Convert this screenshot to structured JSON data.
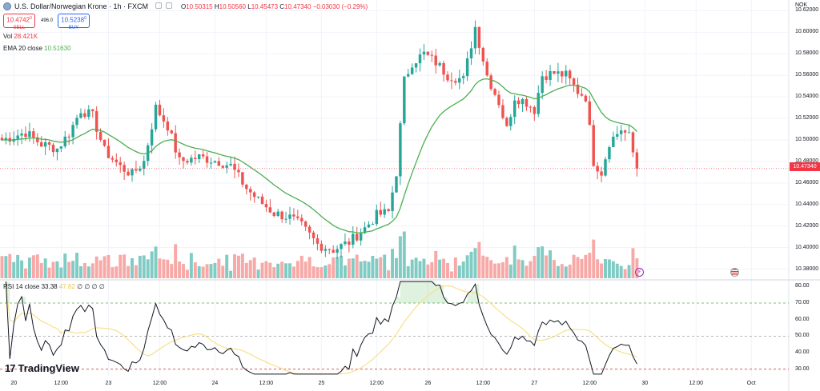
{
  "header": {
    "symbol_title": "U.S. Dollar/Norwegian Krone · 1h · FXCM",
    "ohlc": {
      "open_label": "O",
      "open": "10.50315",
      "high_label": "H",
      "high": "10.50560",
      "low_label": "L",
      "low": "10.45473",
      "close_label": "C",
      "close": "10.47340",
      "change": "−0.03030 (−0.29%)"
    },
    "sell": {
      "price": "10.4742",
      "price_sup": "0",
      "label": "SELL"
    },
    "buy": {
      "price": "10.5238",
      "price_sup": "0",
      "label": "BUY"
    },
    "spread": "496.0"
  },
  "indicators": {
    "vol_label": "Vol",
    "vol_value": "28.421K",
    "ema_label": "EMA 20 close",
    "ema_value": "10.51630",
    "rsi_label": "RSI 14 close",
    "rsi_value": "33.38",
    "rsi_ma_value": "47.62",
    "rsi_extra": [
      "∅",
      "∅",
      "∅",
      "∅"
    ]
  },
  "logo": {
    "mark": "17",
    "text": "TradingView"
  },
  "colors": {
    "up": "#26a69a",
    "down": "#ef5350",
    "ema": "#4caf50",
    "rsi": "#131722",
    "rsi_ma": "#f7e08a",
    "last": "#f23645"
  },
  "chart_data": [
    {
      "type": "candlestick",
      "title": "U.S. Dollar/Norwegian Krone · 1h · FXCM",
      "currency": "NOK",
      "ylim": [
        10.37,
        10.63
      ],
      "yticks": [
        "10.62000",
        "10.60000",
        "10.58000",
        "10.56000",
        "10.54000",
        "10.52000",
        "10.50000",
        "10.48000",
        "10.46000",
        "10.44000",
        "10.42000",
        "10.40000",
        "10.38000"
      ],
      "ytick_values": [
        10.62,
        10.6,
        10.58,
        10.56,
        10.54,
        10.52,
        10.5,
        10.48,
        10.46,
        10.44,
        10.42,
        10.4,
        10.38
      ],
      "last_price": 10.4734,
      "last_price_label": "10.47340",
      "xticks": [
        {
          "label": "20",
          "bar": 3
        },
        {
          "label": "12:00",
          "bar": 15
        },
        {
          "label": "23",
          "bar": 27
        },
        {
          "label": "12:00",
          "bar": 40
        },
        {
          "label": "24",
          "bar": 54
        },
        {
          "label": "12:00",
          "bar": 67
        },
        {
          "label": "25",
          "bar": 81
        },
        {
          "label": "12:00",
          "bar": 95
        },
        {
          "label": "26",
          "bar": 108
        },
        {
          "label": "12:00",
          "bar": 122
        },
        {
          "label": "27",
          "bar": 135
        },
        {
          "label": "12:00",
          "bar": 149
        },
        {
          "label": "30",
          "bar": 163
        },
        {
          "label": "12:00",
          "bar": 176
        },
        {
          "label": "Oct",
          "bar": 190
        }
      ],
      "series": [
        {
          "name": "EMA 20 close",
          "value": 10.5163
        }
      ]
    },
    {
      "type": "bar",
      "title": "Vol",
      "last_value": "28.421K"
    },
    {
      "type": "line",
      "title": "RSI 14 close",
      "ylim": [
        26,
        84
      ],
      "yticks": [
        "80.00",
        "70.00",
        "60.00",
        "50.00",
        "40.00",
        "30.00"
      ],
      "ytick_values": [
        80,
        70,
        60,
        50,
        40,
        30
      ],
      "levels": [
        70,
        50,
        30
      ],
      "series": [
        {
          "name": "RSI 14",
          "last": 33.38
        },
        {
          "name": "RSI MA",
          "last": 47.62
        }
      ]
    }
  ]
}
